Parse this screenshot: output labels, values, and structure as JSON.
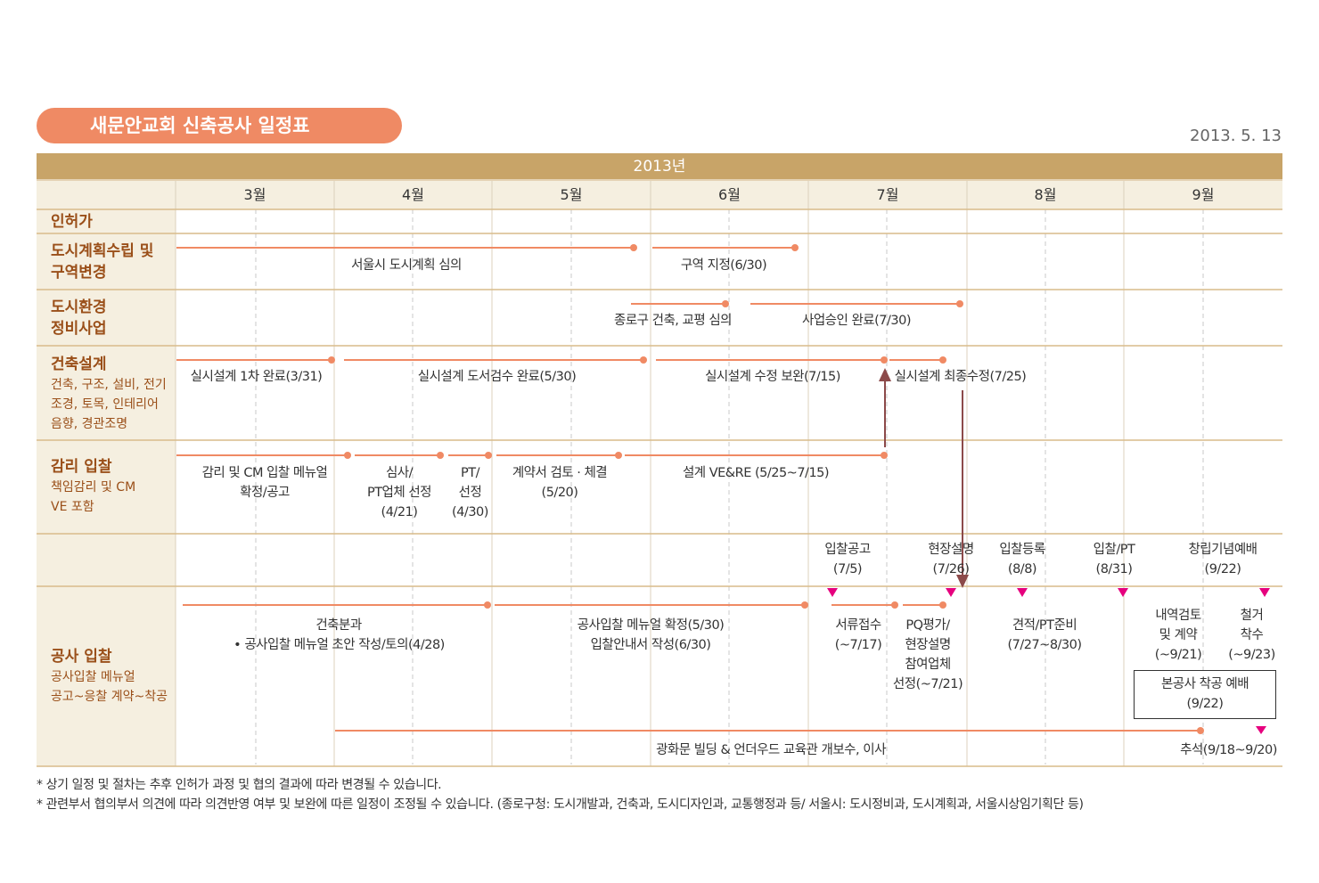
{
  "title": "새문안교회 신축공사 일정표",
  "date": "2013. 5. 13",
  "year": "2013년",
  "months": [
    "3월",
    "4월",
    "5월",
    "6월",
    "7월",
    "8월",
    "9월"
  ],
  "rows": {
    "permit": {
      "main": "인허가"
    },
    "urban": {
      "main1": "도시계획수립 및",
      "main2": "구역변경"
    },
    "env": {
      "main1": "도시환경",
      "main2": "정비사업"
    },
    "arch": {
      "main": "건축설계",
      "sub1": "건축, 구조, 설비, 전기",
      "sub2": "조경, 토목, 인테리어",
      "sub3": "음향, 경관조명"
    },
    "supervision": {
      "main": "감리 입찰",
      "sub1": "책임감리 및 CM",
      "sub2": "VE 포함"
    },
    "construction": {
      "main": "공사 입찰",
      "sub1": "공사입찰 메뉴얼",
      "sub2": "공고~응찰 계약~착공"
    }
  },
  "labels": {
    "urban_a": "서울시 도시계획 심의",
    "urban_b": "구역 지정(6/30)",
    "env_a": "종로구 건축, 교평 심의",
    "env_b": "사업승인 완료(7/30)",
    "arch_a": "실시설계 1차 완료(3/31)",
    "arch_b": "실시설계 도서검수 완료(5/30)",
    "arch_c": "실시설계 수정 보완(7/15)",
    "arch_d": "실시설계 최종수정(7/25)",
    "sup_a1": "감리 및 CM 입찰 메뉴얼",
    "sup_a2": "확정/공고",
    "sup_b1": "심사/",
    "sup_b2": "PT업체 선정",
    "sup_b3": "(4/21)",
    "sup_c1": "PT/",
    "sup_c2": "선정",
    "sup_c3": "(4/30)",
    "sup_d1": "계약서 검토 · 체결",
    "sup_d2": "(5/20)",
    "sup_e": "설계 VE&RE (5/25~7/15)",
    "ms_a1": "입찰공고",
    "ms_a2": "(7/5)",
    "ms_b1": "현장설명",
    "ms_b2": "(7/26)",
    "ms_c1": "입찰등록",
    "ms_c2": "(8/8)",
    "ms_d1": "입찰/PT",
    "ms_d2": "(8/31)",
    "ms_e1": "창립기념예배",
    "ms_e2": "(9/22)",
    "con_a1": "건축분과",
    "con_a2": "•  공사입찰 메뉴얼 초안 작성/토의(4/28)",
    "con_b1": "공사입찰 메뉴얼 확정(5/30)",
    "con_b2": "입찰안내서 작성(6/30)",
    "con_c1": "서류접수",
    "con_c2": "(~7/17)",
    "con_d1": "PQ평가/",
    "con_d2": "현장설명",
    "con_d3": "참여업체",
    "con_d4": "선정(~7/21)",
    "con_e1": "견적/PT준비",
    "con_e2": "(7/27~8/30)",
    "con_f1": "내역검토",
    "con_f2": "및 계약",
    "con_f3": "(~9/21)",
    "con_g1": "철거",
    "con_g2": "착수",
    "con_g3": "(~9/23)",
    "con_h1": "본공사 착공 예배",
    "con_h2": "(9/22)",
    "con_i": "광화문 빌딩 & 언더우드 교육관 개보수, 이사",
    "con_j": "추석(9/18~9/20)"
  },
  "notes": [
    "* 상기 일정 및 절차는 추후 인허가 과정  및  협의 결과에 따라 변경될 수 있습니다.",
    "* 관련부서 협의부서  의견에 따라 의견반영 여부 및 보완에 따른 일정이 조정될 수 있습니다. (종로구청: 도시개발과, 건축과, 도시디자인과, 교통행정과 등/ 서울시: 도시정비과, 도시계획과, 서울시상임기획단 등)"
  ],
  "colors": {
    "accent": "#ef8a64",
    "gold": "#c8a468",
    "band": "#f5efe0",
    "line": "#f08a64",
    "marker": "#e6007e",
    "arrow": "#8c4a4a",
    "label": "#9a4f19"
  }
}
